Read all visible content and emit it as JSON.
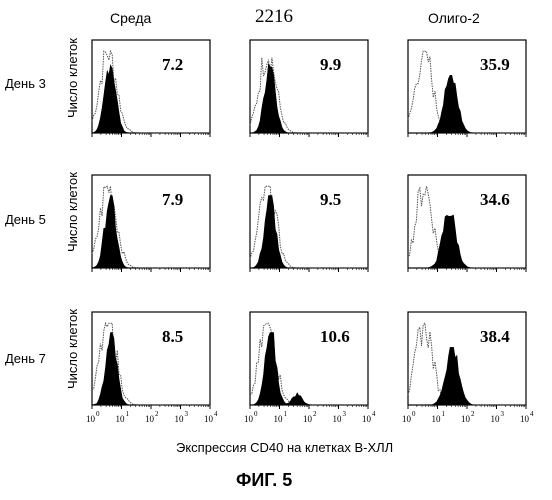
{
  "column_headers": [
    "Среда",
    "2216",
    "Олиго-2"
  ],
  "row_labels": [
    "День 3",
    "День 5",
    "День 7"
  ],
  "y_axis_label": "Число клеток",
  "x_axis_label": "Экспрессия CD40 на клетках В-ХЛЛ",
  "figure_label": "ФИГ. 5",
  "chart_data": {
    "type": "histogram-grid",
    "x_scale": "log",
    "xlim": [
      1,
      10000
    ],
    "x_tick_labels": [
      "10^0",
      "10^1",
      "10^2",
      "10^3",
      "10^4"
    ],
    "filled_color": "#000000",
    "outline_color": "#555555",
    "panels": [
      {
        "row": 0,
        "col": 0,
        "value_label": "7.2",
        "control_peak_decades": 0.55,
        "filled_peak_decades": 0.62
      },
      {
        "row": 0,
        "col": 1,
        "value_label": "9.9",
        "control_peak_decades": 0.6,
        "filled_peak_decades": 0.68
      },
      {
        "row": 0,
        "col": 2,
        "value_label": "35.9",
        "control_peak_decades": 0.55,
        "filled_peak_decades": 1.45
      },
      {
        "row": 1,
        "col": 0,
        "value_label": "7.9",
        "control_peak_decades": 0.55,
        "filled_peak_decades": 0.62
      },
      {
        "row": 1,
        "col": 1,
        "value_label": "9.5",
        "control_peak_decades": 0.6,
        "filled_peak_decades": 0.68
      },
      {
        "row": 1,
        "col": 2,
        "value_label": "34.6",
        "control_peak_decades": 0.55,
        "filled_peak_decades": 1.4
      },
      {
        "row": 2,
        "col": 0,
        "value_label": "8.5",
        "control_peak_decades": 0.55,
        "filled_peak_decades": 0.65
      },
      {
        "row": 2,
        "col": 1,
        "value_label": "10.6",
        "control_peak_decades": 0.6,
        "filled_peak_decades": 0.7
      },
      {
        "row": 2,
        "col": 2,
        "value_label": "38.4",
        "control_peak_decades": 0.55,
        "filled_peak_decades": 1.5
      }
    ]
  }
}
